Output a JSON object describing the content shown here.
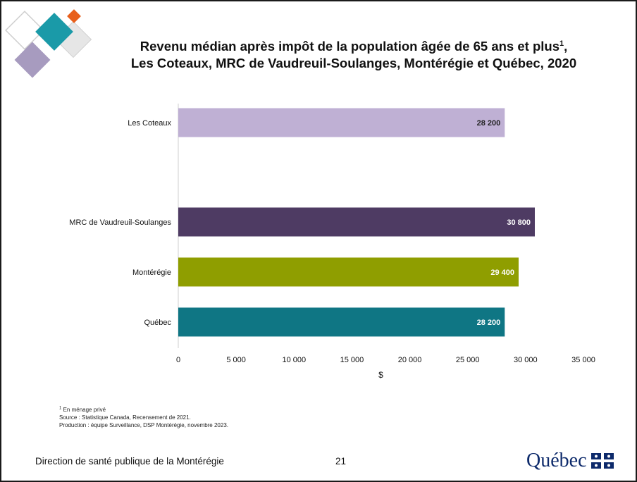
{
  "title": {
    "line1_text": "Revenu médian après impôt de la population âgée de 65 ans et plus",
    "line1_sup": "1",
    "line2_text": "Les Coteaux, MRC de Vaudreuil-Soulanges, Montérégie et Québec, 2020"
  },
  "chart_data": {
    "type": "bar",
    "orientation": "horizontal",
    "categories": [
      "Les Coteaux",
      "MRC de Vaudreuil-Soulanges",
      "Montérégie",
      "Québec"
    ],
    "values": [
      28200,
      30800,
      29400,
      28200
    ],
    "value_labels": [
      "28 200",
      "30 800",
      "29 400",
      "28 200"
    ],
    "colors": [
      "#bfb0d4",
      "#4e3b63",
      "#8f9e00",
      "#0f7684"
    ],
    "label_colors": [
      "#222222",
      "#ffffff",
      "#ffffff",
      "#ffffff"
    ],
    "xlim": [
      0,
      35000
    ],
    "xticks": [
      0,
      5000,
      10000,
      15000,
      20000,
      25000,
      30000,
      35000
    ],
    "xtick_labels": [
      "0",
      "5 000",
      "10 000",
      "15 000",
      "20 000",
      "25 000",
      "30 000",
      "35 000"
    ],
    "xlabel": "$",
    "grid": false
  },
  "footnotes": {
    "note1_sup": "1",
    "note1_text": " En ménage privé",
    "source": "Source : Statistique Canada, Recensement de 2021.",
    "production": "Production : équipe Surveillance, DSP Montérégie, novembre 2023."
  },
  "footer": {
    "left": "Direction de santé publique de la Montérégie",
    "page": "21",
    "logo_text": "Québec"
  },
  "colors": {
    "deco_teal": "#1a9aa8",
    "deco_purple": "#a79bbf",
    "deco_orange": "#e8601c",
    "deco_gray": "#e6e6e6",
    "logo_blue": "#0d2a6b"
  },
  "icons": {
    "decoration": "diamond-tiles-decoration",
    "logo_flag": "fleurdelise-flag-icon"
  }
}
